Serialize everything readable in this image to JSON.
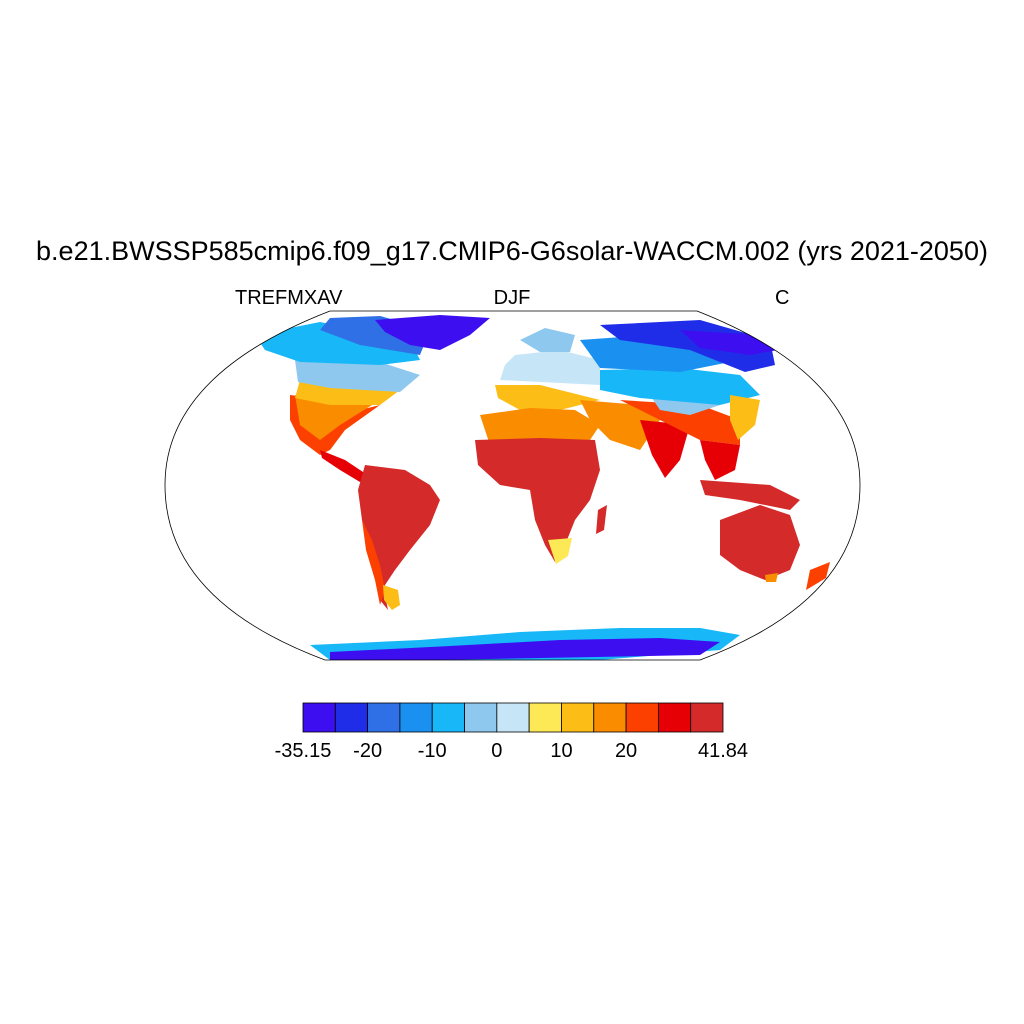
{
  "title": "b.e21.BWSSP585cmip6.f09_g17.CMIP6-G6solar-WACCM.002 (yrs 2021-2050)",
  "left_label": "TREFMXAV",
  "center_label": "DJF",
  "right_label": "C",
  "projection": "robinson",
  "colorbar": {
    "colors": [
      "#3d0ff0",
      "#1f2de8",
      "#3070e6",
      "#1a90f0",
      "#18b8f8",
      "#8ec8ee",
      "#c6e6f8",
      "#fde856",
      "#fcbe16",
      "#fa8c00",
      "#fc4000",
      "#e60006",
      "#d42a2a"
    ],
    "labels": [
      "-35.15",
      "-20",
      "-10",
      "0",
      "10",
      "20",
      "41.84"
    ]
  }
}
